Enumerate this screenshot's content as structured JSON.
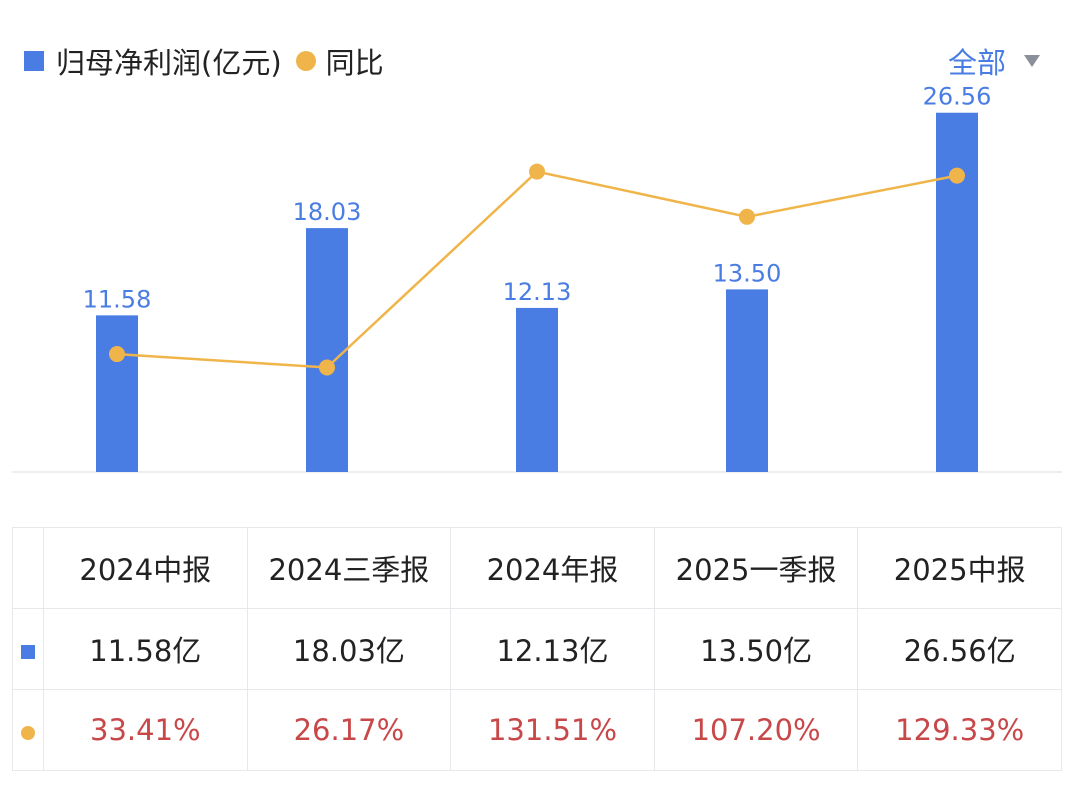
{
  "legend": {
    "bar_label": "归母净利润(亿元)",
    "line_label": "同比"
  },
  "filter": {
    "label": "全部"
  },
  "colors": {
    "bar": "#4a7de3",
    "line": "#f0b54a",
    "yoy_text": "#c8484a",
    "grid": "#e6e8ec"
  },
  "chart_data": {
    "type": "bar",
    "categories": [
      "2024中报",
      "2024三季报",
      "2024年报",
      "2025一季报",
      "2025中报"
    ],
    "series": [
      {
        "name": "归母净利润(亿元)",
        "type": "bar",
        "values": [
          11.58,
          18.03,
          12.13,
          13.5,
          26.56
        ]
      },
      {
        "name": "同比",
        "type": "line",
        "values": [
          33.41,
          26.17,
          131.51,
          107.2,
          129.33
        ]
      }
    ],
    "bar_labels": [
      "11.58",
      "18.03",
      "12.13",
      "13.50",
      "26.56"
    ],
    "ylim": [
      0,
      27.5
    ],
    "y2lim": [
      -30,
      170
    ]
  },
  "table": {
    "headers": [
      "2024中报",
      "2024三季报",
      "2024年报",
      "2025一季报",
      "2025中报"
    ],
    "values": [
      "11.58亿",
      "18.03亿",
      "12.13亿",
      "13.50亿",
      "26.56亿"
    ],
    "yoy": [
      "33.41%",
      "26.17%",
      "131.51%",
      "107.20%",
      "129.33%"
    ]
  }
}
